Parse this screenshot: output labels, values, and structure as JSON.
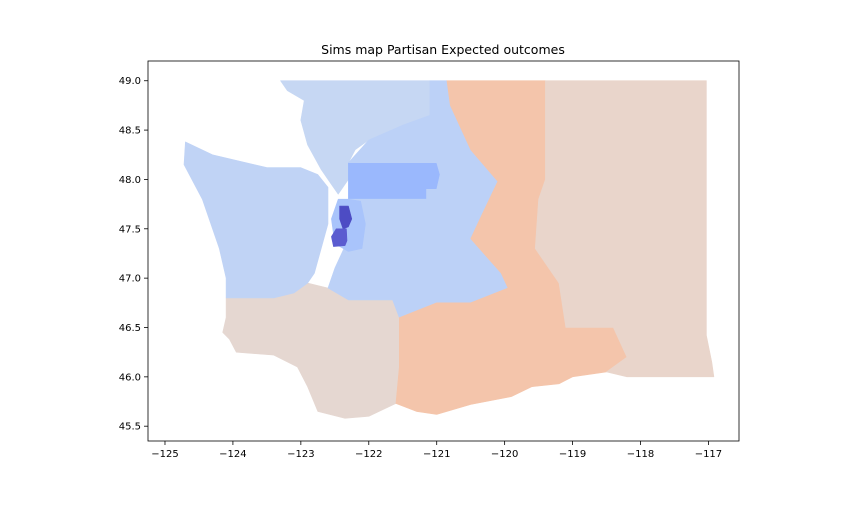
{
  "chart_data": {
    "type": "map",
    "title": "Sims map Partisan Expected outcomes",
    "xlabel": "",
    "ylabel": "",
    "xlim": [
      -125.25,
      -116.55
    ],
    "ylim": [
      45.35,
      49.2
    ],
    "x_ticks": [
      -125,
      -124,
      -123,
      -122,
      -121,
      -120,
      -119,
      -118,
      -117
    ],
    "x_tick_labels": [
      "−125",
      "−124",
      "−123",
      "−122",
      "−121",
      "−120",
      "−119",
      "−118",
      "−117"
    ],
    "y_ticks": [
      45.5,
      46.0,
      46.5,
      47.0,
      47.5,
      48.0,
      48.5,
      49.0
    ],
    "y_tick_labels": [
      "45.5",
      "46.0",
      "46.5",
      "47.0",
      "47.5",
      "48.0",
      "48.5",
      "49.0"
    ],
    "grid": false,
    "colormap": "coolwarm",
    "regions": [
      {
        "id": "southwest",
        "color": "#e5d7d1",
        "coords": [
          [
            -123.1,
            46.85
          ],
          [
            -122.9,
            46.95
          ],
          [
            -122.6,
            46.9
          ],
          [
            -122.3,
            46.78
          ],
          [
            -121.95,
            46.78
          ],
          [
            -121.65,
            46.78
          ],
          [
            -121.55,
            46.6
          ],
          [
            -121.55,
            46.1
          ],
          [
            -121.6,
            45.73
          ],
          [
            -122.0,
            45.6
          ],
          [
            -122.35,
            45.58
          ],
          [
            -122.75,
            45.65
          ],
          [
            -122.9,
            45.9
          ],
          [
            -123.05,
            46.1
          ],
          [
            -123.4,
            46.22
          ],
          [
            -123.95,
            46.25
          ],
          [
            -124.05,
            46.38
          ],
          [
            -124.15,
            46.45
          ],
          [
            -124.1,
            46.6
          ],
          [
            -124.1,
            46.8
          ],
          [
            -123.7,
            46.8
          ],
          [
            -123.4,
            46.8
          ]
        ]
      },
      {
        "id": "olympic",
        "color": "#c0d3f5",
        "coords": [
          [
            -124.7,
            48.38
          ],
          [
            -124.3,
            48.25
          ],
          [
            -123.5,
            48.12
          ],
          [
            -123.0,
            48.12
          ],
          [
            -122.75,
            48.05
          ],
          [
            -122.6,
            47.92
          ],
          [
            -122.6,
            47.55
          ],
          [
            -122.7,
            47.3
          ],
          [
            -122.8,
            47.05
          ],
          [
            -122.9,
            46.95
          ],
          [
            -123.1,
            46.85
          ],
          [
            -123.4,
            46.8
          ],
          [
            -123.7,
            46.8
          ],
          [
            -124.1,
            46.8
          ],
          [
            -124.1,
            47.0
          ],
          [
            -124.2,
            47.3
          ],
          [
            -124.45,
            47.8
          ],
          [
            -124.72,
            48.15
          ]
        ]
      },
      {
        "id": "northwest",
        "color": "#c6d7f3",
        "coords": [
          [
            -123.3,
            49.0
          ],
          [
            -122.85,
            49.0
          ],
          [
            -121.9,
            49.0
          ],
          [
            -121.1,
            49.0
          ],
          [
            -121.1,
            48.65
          ],
          [
            -121.5,
            48.55
          ],
          [
            -122.0,
            48.4
          ],
          [
            -122.2,
            48.3
          ],
          [
            -122.3,
            48.17
          ],
          [
            -122.3,
            48.0
          ],
          [
            -122.45,
            47.85
          ],
          [
            -122.55,
            47.95
          ],
          [
            -122.7,
            48.1
          ],
          [
            -122.9,
            48.35
          ],
          [
            -123.0,
            48.6
          ],
          [
            -122.95,
            48.8
          ],
          [
            -123.2,
            48.9
          ]
        ]
      },
      {
        "id": "north-central",
        "color": "#9ab8fd",
        "coords": [
          [
            -122.3,
            48.17
          ],
          [
            -121.0,
            48.17
          ],
          [
            -120.95,
            48.05
          ],
          [
            -121.0,
            47.9
          ],
          [
            -121.15,
            47.9
          ],
          [
            -121.15,
            47.8
          ],
          [
            -122.3,
            47.8
          ]
        ]
      },
      {
        "id": "cascade-central",
        "color": "#bcd1f7",
        "coords": [
          [
            -122.3,
            48.17
          ],
          [
            -122.0,
            48.4
          ],
          [
            -121.5,
            48.55
          ],
          [
            -121.1,
            48.65
          ],
          [
            -121.1,
            49.0
          ],
          [
            -120.85,
            49.0
          ],
          [
            -120.8,
            48.75
          ],
          [
            -120.5,
            48.3
          ],
          [
            -120.1,
            47.98
          ],
          [
            -120.35,
            47.62
          ],
          [
            -120.5,
            47.4
          ],
          [
            -120.05,
            47.05
          ],
          [
            -119.95,
            46.9
          ],
          [
            -120.5,
            46.75
          ],
          [
            -121.0,
            46.75
          ],
          [
            -121.55,
            46.6
          ],
          [
            -121.65,
            46.78
          ],
          [
            -121.95,
            46.78
          ],
          [
            -122.3,
            46.78
          ],
          [
            -122.6,
            46.9
          ],
          [
            -122.5,
            47.1
          ],
          [
            -122.3,
            47.4
          ],
          [
            -122.3,
            47.8
          ],
          [
            -121.15,
            47.8
          ],
          [
            -121.15,
            47.9
          ],
          [
            -121.0,
            47.9
          ],
          [
            -120.95,
            48.05
          ],
          [
            -121.0,
            48.17
          ]
        ]
      },
      {
        "id": "king-suburbs",
        "color": "#a9c4fb",
        "coords": [
          [
            -122.3,
            47.8
          ],
          [
            -122.12,
            47.78
          ],
          [
            -122.05,
            47.55
          ],
          [
            -122.1,
            47.3
          ],
          [
            -122.3,
            47.27
          ],
          [
            -122.5,
            47.35
          ],
          [
            -122.55,
            47.6
          ],
          [
            -122.45,
            47.8
          ]
        ]
      },
      {
        "id": "seattle",
        "color": "#4d4cc4",
        "coords": [
          [
            -122.43,
            47.73
          ],
          [
            -122.3,
            47.73
          ],
          [
            -122.25,
            47.6
          ],
          [
            -122.3,
            47.52
          ],
          [
            -122.38,
            47.5
          ],
          [
            -122.43,
            47.6
          ]
        ]
      },
      {
        "id": "south-seattle",
        "color": "#5b5cd0",
        "coords": [
          [
            -122.48,
            47.5
          ],
          [
            -122.33,
            47.5
          ],
          [
            -122.32,
            47.38
          ],
          [
            -122.35,
            47.33
          ],
          [
            -122.52,
            47.32
          ],
          [
            -122.55,
            47.42
          ]
        ]
      },
      {
        "id": "central",
        "color": "#f4c5ab",
        "coords": [
          [
            -120.85,
            49.0
          ],
          [
            -119.4,
            49.0
          ],
          [
            -119.4,
            48.0
          ],
          [
            -119.5,
            47.8
          ],
          [
            -119.55,
            47.3
          ],
          [
            -119.2,
            46.95
          ],
          [
            -119.1,
            46.5
          ],
          [
            -118.4,
            46.5
          ],
          [
            -118.2,
            46.2
          ],
          [
            -118.5,
            46.05
          ],
          [
            -119.0,
            46.0
          ],
          [
            -119.2,
            45.93
          ],
          [
            -119.6,
            45.9
          ],
          [
            -119.9,
            45.8
          ],
          [
            -120.5,
            45.72
          ],
          [
            -121.0,
            45.62
          ],
          [
            -121.3,
            45.65
          ],
          [
            -121.6,
            45.73
          ],
          [
            -121.55,
            46.1
          ],
          [
            -121.55,
            46.6
          ],
          [
            -121.0,
            46.75
          ],
          [
            -120.5,
            46.75
          ],
          [
            -119.95,
            46.9
          ],
          [
            -120.05,
            47.05
          ],
          [
            -120.5,
            47.4
          ],
          [
            -120.35,
            47.62
          ],
          [
            -120.1,
            47.98
          ],
          [
            -120.5,
            48.3
          ],
          [
            -120.8,
            48.75
          ]
        ]
      },
      {
        "id": "east",
        "color": "#e9d5cb",
        "coords": [
          [
            -119.4,
            49.0
          ],
          [
            -117.03,
            49.0
          ],
          [
            -117.03,
            46.42
          ],
          [
            -116.95,
            46.15
          ],
          [
            -116.92,
            46.0
          ],
          [
            -117.6,
            46.0
          ],
          [
            -118.2,
            46.0
          ],
          [
            -118.5,
            46.05
          ],
          [
            -118.2,
            46.2
          ],
          [
            -118.4,
            46.5
          ],
          [
            -119.1,
            46.5
          ],
          [
            -119.2,
            46.95
          ],
          [
            -119.55,
            47.3
          ],
          [
            -119.5,
            47.8
          ],
          [
            -119.4,
            48.0
          ]
        ]
      }
    ]
  }
}
